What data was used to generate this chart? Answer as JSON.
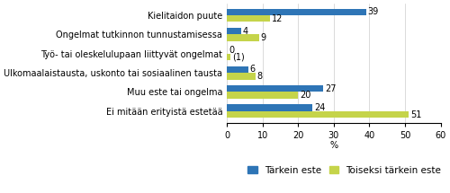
{
  "categories": [
    "Ei mitään erityistä estetää",
    "Muu este tai ongelma",
    "Ulkomaalaistausta, uskonto tai sosiaalinen tausta",
    "Työ- tai oleskelulupaan liittyvät ongelmat",
    "Ongelmat tutkinnon tunnustamisessa",
    "Kielitaidon puute"
  ],
  "tarkein": [
    24,
    27,
    6,
    0,
    4,
    39
  ],
  "toiseksi": [
    51,
    20,
    8,
    1,
    9,
    12
  ],
  "tarkein_labels": [
    "24",
    "27",
    "6",
    "0",
    "4",
    "39"
  ],
  "toiseksi_labels": [
    "51",
    "20",
    "8",
    "(1)",
    "9",
    "12"
  ],
  "color_tarkein": "#2E75B6",
  "color_toiseksi": "#C5D44A",
  "xlabel": "%",
  "xlim": [
    0,
    60
  ],
  "xticks": [
    0,
    10,
    20,
    30,
    40,
    50,
    60
  ],
  "legend_tarkein": "Tärkein este",
  "legend_toiseksi": "Toiseksi tärkein este",
  "bar_height": 0.35,
  "fontsize_labels": 7.0,
  "fontsize_tick": 7.0,
  "fontsize_legend": 7.5
}
